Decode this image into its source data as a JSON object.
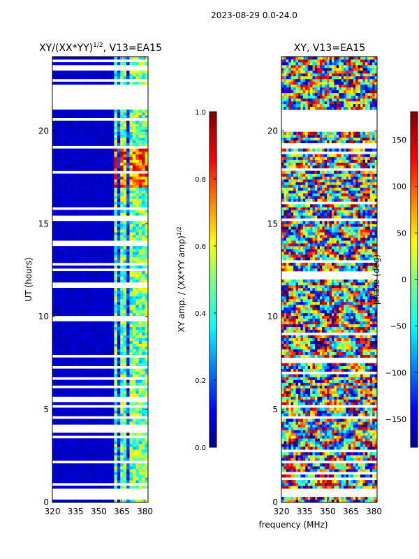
{
  "chart_data": {
    "suptitle": "2023-08-29 0.0-24.0",
    "shared_xlabel": "frequency (MHz)",
    "panels": [
      {
        "type": "heatmap",
        "title": "XY/(XX*YY)",
        "title_exponent": "1/2",
        "title_suffix": ", V13=EA15",
        "ylabel": "UT (hours)",
        "xlim": [
          320,
          382
        ],
        "ylim": [
          0,
          24
        ],
        "xticks": [
          "320",
          "335",
          "350",
          "365",
          "380"
        ],
        "yticks": [
          "0",
          "5",
          "10",
          "15",
          "20"
        ],
        "colorbar": {
          "label": "XY amp. / (XX*YY amp)",
          "label_exponent": "1/2",
          "range": [
            0,
            1
          ],
          "ticks": [
            "0.0",
            "0.2",
            "0.4",
            "0.6",
            "0.8",
            "1.0"
          ]
        },
        "gaps_hours": [
          [
            0.1,
            0.7
          ],
          [
            21.1,
            22.5
          ]
        ],
        "bright_channels_mhz": [
          361,
          366,
          372,
          376,
          380
        ],
        "background_level": 0.05
      },
      {
        "type": "heatmap",
        "title": "XY, V13=EA15",
        "xlim": [
          320,
          382
        ],
        "ylim": [
          0,
          24
        ],
        "xticks": [
          "320",
          "335",
          "350",
          "365",
          "380"
        ],
        "yticks": [
          "0",
          "5",
          "10",
          "15",
          "20"
        ],
        "colorbar": {
          "label": "phase (deg)",
          "range": [
            -180,
            180
          ],
          "ticks": [
            "150",
            "100",
            "50",
            "0",
            "−50",
            "−100",
            "−150"
          ]
        },
        "gaps_hours": [
          [
            0.3,
            0.7
          ],
          [
            19.9,
            21.2
          ]
        ]
      }
    ]
  },
  "colormap": "jet",
  "colors": {
    "axis": "#000000",
    "background": "#ffffff",
    "low": "#00008f",
    "high": "#800000"
  }
}
